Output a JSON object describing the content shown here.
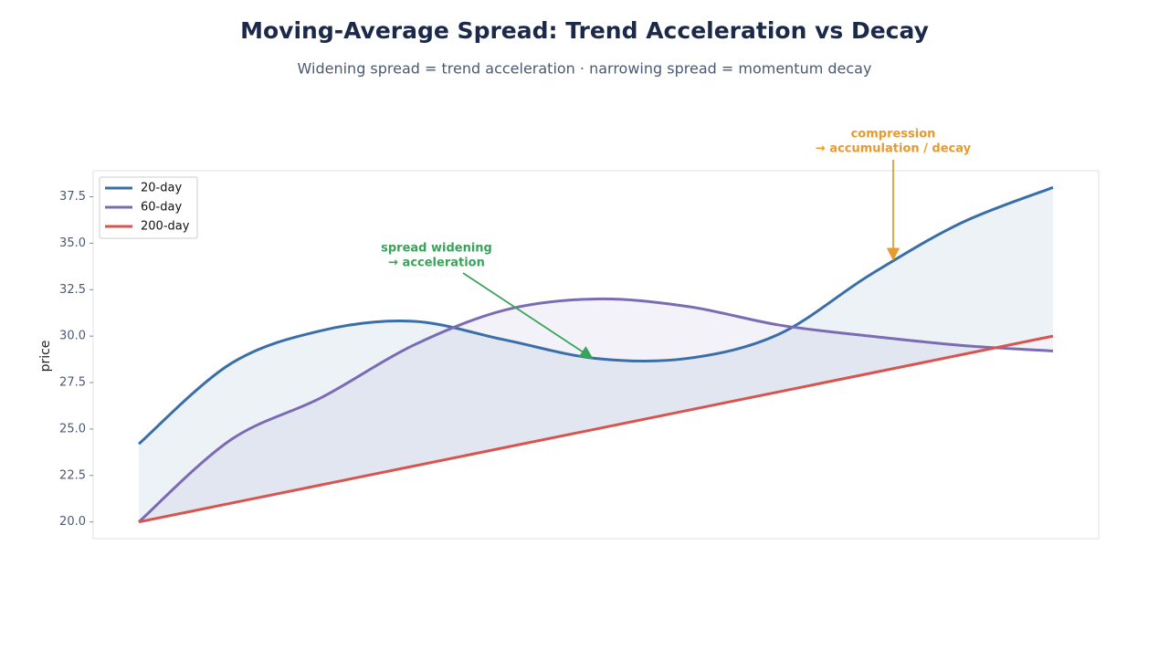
{
  "chart_data": {
    "type": "line",
    "title": "Moving-Average Spread: Trend Acceleration vs Decay",
    "subtitle": "Widening spread = trend acceleration · narrowing spread = momentum decay",
    "y_label": "price",
    "categories": [
      null,
      null,
      null,
      null,
      null,
      null,
      null,
      null,
      null,
      null,
      null
    ],
    "series": [
      {
        "name": "20-day",
        "color": "#3a6ea8",
        "values": [
          24.2,
          28.5,
          30.3,
          30.8,
          29.8,
          28.8,
          28.8,
          30.1,
          33.3,
          36.1,
          38.0
        ]
      },
      {
        "name": "60-day",
        "color": "#7b6bb5",
        "values": [
          20.0,
          24.4,
          26.7,
          29.5,
          31.4,
          32.0,
          31.6,
          30.6,
          30.0,
          29.5,
          29.2
        ]
      },
      {
        "name": "200-day",
        "color": "#d9534f",
        "values": [
          20.0,
          21.0,
          22.0,
          23.0,
          24.0,
          25.0,
          26.0,
          27.0,
          28.0,
          29.0,
          30.0
        ]
      }
    ],
    "ylim": [
      19.1,
      38.9
    ],
    "yticks": [
      {
        "value": 20,
        "label": "20.0"
      },
      22.5,
      {
        "value": 25,
        "label": "25.0"
      },
      27.5,
      {
        "value": 30,
        "label": "30.0"
      },
      32.5,
      {
        "value": 35,
        "label": "35.0"
      },
      37.5
    ],
    "grid": false,
    "legend": "upper-left",
    "annotations": [
      {
        "lines": [
          "spread widening",
          "→ acceleration"
        ],
        "color": "#3aa35a"
      },
      {
        "lines": [
          "compression",
          "→ accumulation / decay"
        ],
        "color": "#e89a2c"
      }
    ]
  }
}
